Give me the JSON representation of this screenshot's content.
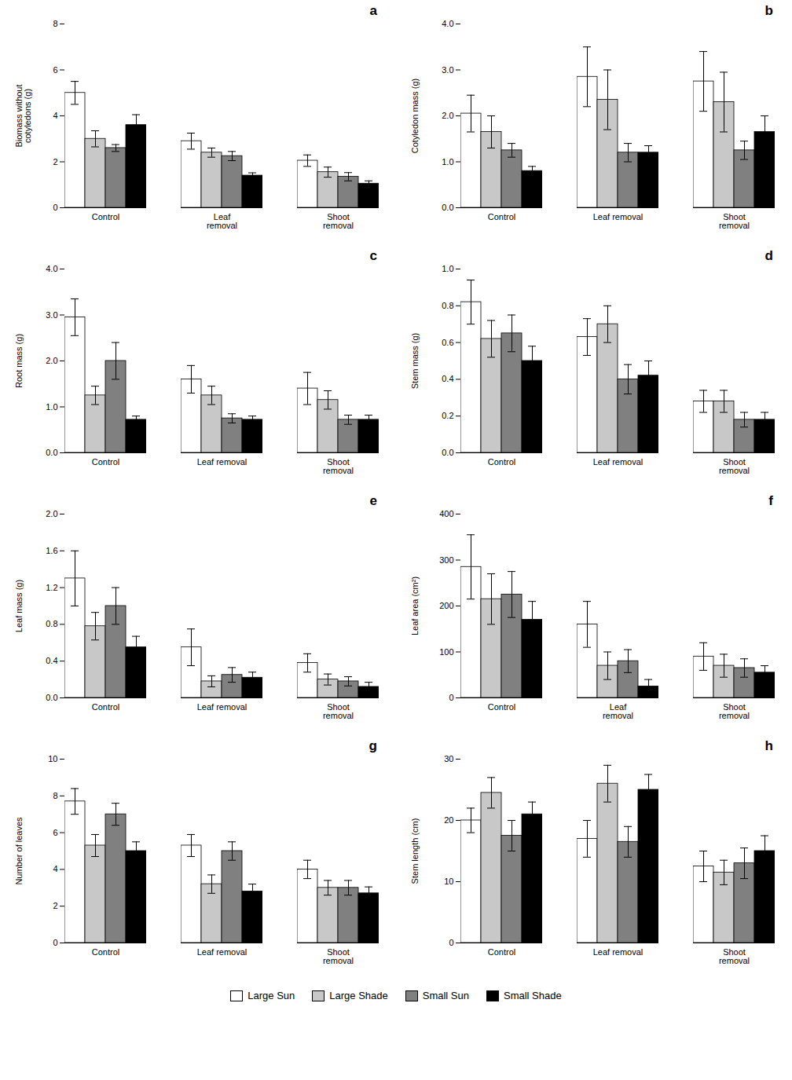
{
  "chart_data": [
    {
      "type": "bar",
      "annotations": [
        "a"
      ],
      "ylabel": "Biomass without\ncotyledons (g)",
      "categories": [
        "Control",
        "Leaf\nremoval",
        "Shoot\nremoval"
      ],
      "series": [
        {
          "name": "Large Sun",
          "color": "#ffffff",
          "values": [
            5.0,
            2.9,
            2.05
          ],
          "errors": [
            0.5,
            0.35,
            0.25
          ]
        },
        {
          "name": "Large Shade",
          "color": "#c8c8c8",
          "values": [
            3.0,
            2.4,
            1.55
          ],
          "errors": [
            0.35,
            0.2,
            0.22
          ]
        },
        {
          "name": "Small Sun",
          "color": "#808080",
          "values": [
            2.6,
            2.25,
            1.35
          ],
          "errors": [
            0.15,
            0.2,
            0.18
          ]
        },
        {
          "name": "Small Shade",
          "color": "#000000",
          "values": [
            3.6,
            1.4,
            1.05
          ],
          "errors": [
            0.45,
            0.12,
            0.12
          ]
        }
      ],
      "ylim": [
        0,
        8
      ],
      "yticks": [
        0,
        2,
        4,
        6,
        8
      ],
      "legend": "bottom"
    },
    {
      "type": "bar",
      "annotations": [
        "b"
      ],
      "ylabel": "Cotyledon mass (g)",
      "categories": [
        "Control",
        "Leaf removal",
        "Shoot\nremoval"
      ],
      "series": [
        {
          "name": "Large Sun",
          "color": "#ffffff",
          "values": [
            2.05,
            2.85,
            2.75
          ],
          "errors": [
            0.4,
            0.65,
            0.65
          ]
        },
        {
          "name": "Large Shade",
          "color": "#c8c8c8",
          "values": [
            1.65,
            2.35,
            2.3
          ],
          "errors": [
            0.35,
            0.65,
            0.65
          ]
        },
        {
          "name": "Small Sun",
          "color": "#808080",
          "values": [
            1.25,
            1.2,
            1.25
          ],
          "errors": [
            0.15,
            0.2,
            0.2
          ]
        },
        {
          "name": "Small Shade",
          "color": "#000000",
          "values": [
            0.8,
            1.2,
            1.65
          ],
          "errors": [
            0.1,
            0.15,
            0.35
          ]
        }
      ],
      "ylim": [
        0,
        4.0
      ],
      "yticks": [
        {
          "value": 0,
          "label": "0.0"
        },
        {
          "value": 1,
          "label": "1.0"
        },
        {
          "value": 2,
          "label": "2.0"
        },
        {
          "value": 3,
          "label": "3.0"
        },
        {
          "value": 4,
          "label": "4.0"
        }
      ],
      "legend": "bottom"
    },
    {
      "type": "bar",
      "annotations": [
        "c"
      ],
      "ylabel": "Root mass (g)",
      "categories": [
        "Control",
        "Leaf removal",
        "Shoot\nremoval"
      ],
      "series": [
        {
          "name": "Large Sun",
          "color": "#ffffff",
          "values": [
            2.95,
            1.6,
            1.4
          ],
          "errors": [
            0.4,
            0.3,
            0.35
          ]
        },
        {
          "name": "Large Shade",
          "color": "#c8c8c8",
          "values": [
            1.25,
            1.25,
            1.15
          ],
          "errors": [
            0.2,
            0.2,
            0.2
          ]
        },
        {
          "name": "Small Sun",
          "color": "#808080",
          "values": [
            2.0,
            0.75,
            0.72
          ],
          "errors": [
            0.4,
            0.1,
            0.1
          ]
        },
        {
          "name": "Small Shade",
          "color": "#000000",
          "values": [
            0.72,
            0.72,
            0.72
          ],
          "errors": [
            0.08,
            0.08,
            0.1
          ]
        }
      ],
      "ylim": [
        0,
        4.0
      ],
      "yticks": [
        {
          "value": 0,
          "label": "0.0"
        },
        {
          "value": 1,
          "label": "1.0"
        },
        {
          "value": 2,
          "label": "2.0"
        },
        {
          "value": 3,
          "label": "3.0"
        },
        {
          "value": 4,
          "label": "4.0"
        }
      ],
      "legend": "bottom"
    },
    {
      "type": "bar",
      "annotations": [
        "d"
      ],
      "ylabel": "Stem mass (g)",
      "categories": [
        "Control",
        "Leaf removal",
        "Shoot\nremoval"
      ],
      "series": [
        {
          "name": "Large Sun",
          "color": "#ffffff",
          "values": [
            0.82,
            0.63,
            0.28
          ],
          "errors": [
            0.12,
            0.1,
            0.06
          ]
        },
        {
          "name": "Large Shade",
          "color": "#c8c8c8",
          "values": [
            0.62,
            0.7,
            0.28
          ],
          "errors": [
            0.1,
            0.1,
            0.06
          ]
        },
        {
          "name": "Small Sun",
          "color": "#808080",
          "values": [
            0.65,
            0.4,
            0.18
          ],
          "errors": [
            0.1,
            0.08,
            0.04
          ]
        },
        {
          "name": "Small Shade",
          "color": "#000000",
          "values": [
            0.5,
            0.42,
            0.18
          ],
          "errors": [
            0.08,
            0.08,
            0.04
          ]
        }
      ],
      "ylim": [
        0,
        1.0
      ],
      "yticks": [
        {
          "value": 0,
          "label": "0.0"
        },
        0.2,
        0.4,
        0.6,
        0.8,
        {
          "value": 1,
          "label": "1.0"
        }
      ],
      "legend": "bottom"
    },
    {
      "type": "bar",
      "annotations": [
        "e"
      ],
      "ylabel": "Leaf mass (g)",
      "categories": [
        "Control",
        "Leaf removal",
        "Shoot\nremoval"
      ],
      "series": [
        {
          "name": "Large Sun",
          "color": "#ffffff",
          "values": [
            1.3,
            0.55,
            0.38
          ],
          "errors": [
            0.3,
            0.2,
            0.1
          ]
        },
        {
          "name": "Large Shade",
          "color": "#c8c8c8",
          "values": [
            0.78,
            0.18,
            0.2
          ],
          "errors": [
            0.15,
            0.06,
            0.06
          ]
        },
        {
          "name": "Small Sun",
          "color": "#808080",
          "values": [
            1.0,
            0.25,
            0.18
          ],
          "errors": [
            0.2,
            0.08,
            0.05
          ]
        },
        {
          "name": "Small Shade",
          "color": "#000000",
          "values": [
            0.55,
            0.22,
            0.12
          ],
          "errors": [
            0.12,
            0.06,
            0.05
          ]
        }
      ],
      "ylim": [
        0,
        2.0
      ],
      "yticks": [
        {
          "value": 0,
          "label": "0.0"
        },
        0.4,
        0.8,
        1.2,
        1.6,
        {
          "value": 2,
          "label": "2.0"
        }
      ],
      "legend": "bottom"
    },
    {
      "type": "bar",
      "annotations": [
        "f"
      ],
      "ylabel": "Leaf area (cm²)",
      "categories": [
        "Control",
        "Leaf\nremoval",
        "Shoot\nremoval"
      ],
      "series": [
        {
          "name": "Large Sun",
          "color": "#ffffff",
          "values": [
            285,
            160,
            90
          ],
          "errors": [
            70,
            50,
            30
          ]
        },
        {
          "name": "Large Shade",
          "color": "#c8c8c8",
          "values": [
            215,
            70,
            70
          ],
          "errors": [
            55,
            30,
            25
          ]
        },
        {
          "name": "Small Sun",
          "color": "#808080",
          "values": [
            225,
            80,
            65
          ],
          "errors": [
            50,
            25,
            20
          ]
        },
        {
          "name": "Small Shade",
          "color": "#000000",
          "values": [
            170,
            25,
            55
          ],
          "errors": [
            40,
            15,
            15
          ]
        }
      ],
      "ylim": [
        0,
        400
      ],
      "yticks": [
        0,
        100,
        200,
        300,
        400
      ],
      "legend": "bottom"
    },
    {
      "type": "bar",
      "annotations": [
        "g"
      ],
      "ylabel": "Number of leaves",
      "categories": [
        "Control",
        "Leaf removal",
        "Shoot\nremoval"
      ],
      "series": [
        {
          "name": "Large Sun",
          "color": "#ffffff",
          "values": [
            7.7,
            5.3,
            4.0
          ],
          "errors": [
            0.7,
            0.6,
            0.5
          ]
        },
        {
          "name": "Large Shade",
          "color": "#c8c8c8",
          "values": [
            5.3,
            3.2,
            3.0
          ],
          "errors": [
            0.6,
            0.5,
            0.4
          ]
        },
        {
          "name": "Small Sun",
          "color": "#808080",
          "values": [
            7.0,
            5.0,
            3.0
          ],
          "errors": [
            0.6,
            0.5,
            0.4
          ]
        },
        {
          "name": "Small Shade",
          "color": "#000000",
          "values": [
            5.0,
            2.8,
            2.7
          ],
          "errors": [
            0.5,
            0.4,
            0.35
          ]
        }
      ],
      "ylim": [
        0,
        10
      ],
      "yticks": [
        0,
        2,
        4,
        6,
        8,
        10
      ],
      "legend": "bottom"
    },
    {
      "type": "bar",
      "annotations": [
        "h"
      ],
      "ylabel": "Stem length (cm)",
      "categories": [
        "Control",
        "Leaf removal",
        "Shoot\nremoval"
      ],
      "series": [
        {
          "name": "Large Sun",
          "color": "#ffffff",
          "values": [
            20.0,
            17.0,
            12.5
          ],
          "errors": [
            2.0,
            3.0,
            2.5
          ]
        },
        {
          "name": "Large Shade",
          "color": "#c8c8c8",
          "values": [
            24.5,
            26.0,
            11.5
          ],
          "errors": [
            2.5,
            3.0,
            2.0
          ]
        },
        {
          "name": "Small Sun",
          "color": "#808080",
          "values": [
            17.5,
            16.5,
            13.0
          ],
          "errors": [
            2.5,
            2.5,
            2.5
          ]
        },
        {
          "name": "Small Shade",
          "color": "#000000",
          "values": [
            21.0,
            25.0,
            15.0
          ],
          "errors": [
            2.0,
            2.5,
            2.5
          ]
        }
      ],
      "ylim": [
        0,
        30
      ],
      "yticks": [
        0,
        10,
        20,
        30
      ],
      "legend": "bottom"
    }
  ]
}
